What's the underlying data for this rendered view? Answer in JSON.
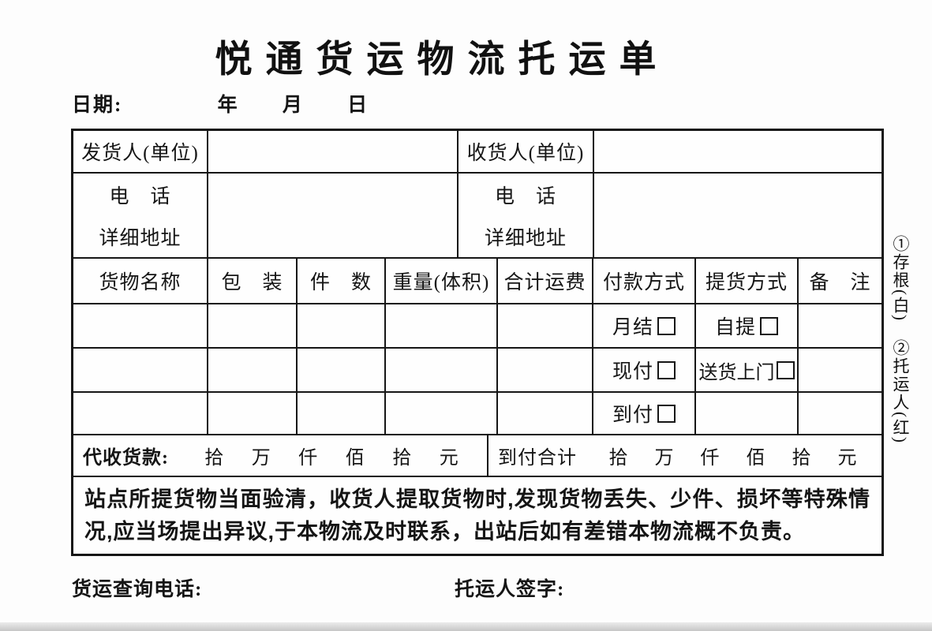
{
  "title": "悦通货运物流托运单",
  "date_line": {
    "label": "日期:",
    "year": "年",
    "month": "月",
    "day": "日"
  },
  "parties": {
    "rows": [
      {
        "left_label": "发货人(单位)",
        "right_label": "收货人(单位)"
      },
      {
        "left_label": "电　话",
        "right_label": "电　话"
      },
      {
        "left_label": "详细地址",
        "right_label": "详细地址"
      }
    ]
  },
  "goods": {
    "headers": [
      "货物名称",
      "包　装",
      "件　数",
      "重量(体积)",
      "合计运费",
      "付款方式",
      "提货方式",
      "备　注"
    ],
    "payment_options": [
      "月结",
      "现付",
      "到付"
    ],
    "pickup_options": [
      "自提",
      "送货上门"
    ]
  },
  "cod": {
    "left_label": "代收货款:",
    "left_units": [
      "拾",
      "万",
      "仟",
      "佰",
      "拾",
      "元"
    ],
    "right_label": "到付合计",
    "right_units": [
      "拾",
      "万",
      "仟",
      "佰",
      "拾",
      "元"
    ]
  },
  "notice": "站点所提货物当面验清，收货人提取货物时,发现货物丢失、少件、损坏等特殊情况,应当场提出异议,于本物流及时联系，出站后如有差错本物流概不负责。",
  "footer": {
    "phone_label": "货运查询电话:",
    "signature_label": "托运人签字:"
  },
  "side_note": {
    "copy1": "①存根(白)",
    "copy2": "②托运人(红)"
  }
}
